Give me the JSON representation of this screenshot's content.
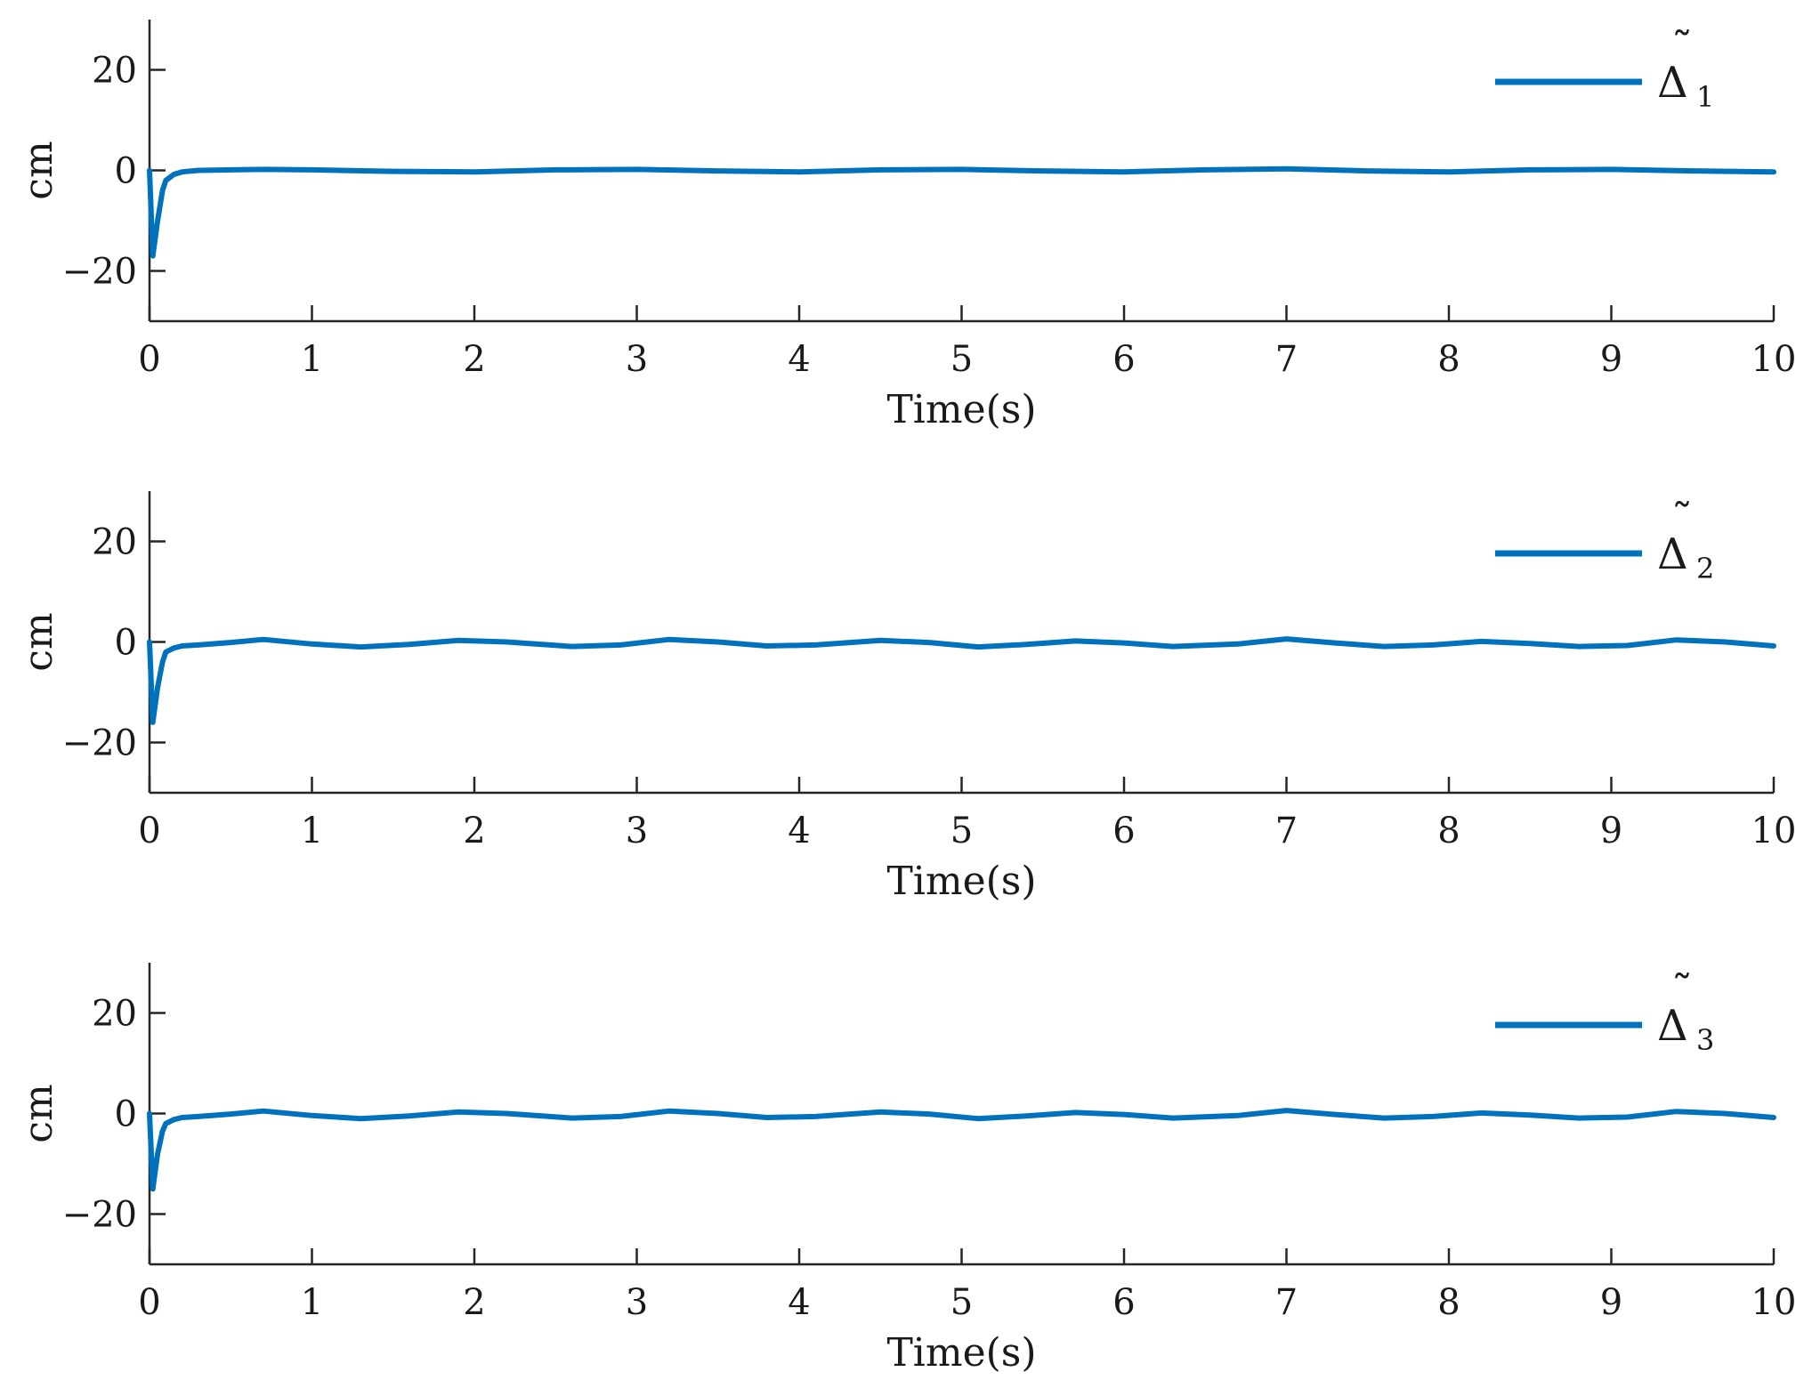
{
  "chart_data": [
    {
      "type": "line",
      "xlabel": "Time(s)",
      "ylabel": "cm",
      "xlim": [
        0,
        10
      ],
      "ylim": [
        -30,
        30
      ],
      "xticks": [
        0,
        1,
        2,
        3,
        4,
        5,
        6,
        7,
        8,
        9,
        10
      ],
      "yticks": [
        20,
        0,
        -20
      ],
      "xtick_labels": [
        "0",
        "1",
        "2",
        "3",
        "4",
        "5",
        "6",
        "7",
        "8",
        "9",
        "10"
      ],
      "ytick_labels": [
        "20",
        "0",
        "−20"
      ],
      "grid": false,
      "legend_position": "top-right",
      "series": [
        {
          "name": "Δ̃₁",
          "legend_symbol": "Δ",
          "legend_subscript": "1",
          "color": "#0072BD",
          "x": [
            0,
            0.02,
            0.05,
            0.08,
            0.1,
            0.15,
            0.2,
            0.3,
            0.5,
            0.7,
            1.0,
            1.5,
            2.0,
            2.5,
            3.0,
            3.5,
            4.0,
            4.5,
            5.0,
            5.5,
            6.0,
            6.5,
            7.0,
            7.5,
            8.0,
            8.5,
            9.0,
            9.5,
            10.0
          ],
          "y": [
            0,
            -17,
            -10,
            -4,
            -2,
            -0.8,
            -0.3,
            0,
            0.1,
            0.2,
            0.1,
            -0.2,
            -0.3,
            0.1,
            0.2,
            -0.1,
            -0.3,
            0.1,
            0.2,
            -0.1,
            -0.3,
            0.1,
            0.3,
            -0.1,
            -0.3,
            0.1,
            0.2,
            -0.1,
            -0.3
          ]
        }
      ]
    },
    {
      "type": "line",
      "xlabel": "Time(s)",
      "ylabel": "cm",
      "xlim": [
        0,
        10
      ],
      "ylim": [
        -30,
        30
      ],
      "xticks": [
        0,
        1,
        2,
        3,
        4,
        5,
        6,
        7,
        8,
        9,
        10
      ],
      "yticks": [
        20,
        0,
        -20
      ],
      "xtick_labels": [
        "0",
        "1",
        "2",
        "3",
        "4",
        "5",
        "6",
        "7",
        "8",
        "9",
        "10"
      ],
      "ytick_labels": [
        "20",
        "0",
        "−20"
      ],
      "grid": false,
      "legend_position": "top-right",
      "series": [
        {
          "name": "Δ̃₂",
          "legend_symbol": "Δ",
          "legend_subscript": "2",
          "color": "#0072BD",
          "x": [
            0,
            0.02,
            0.05,
            0.08,
            0.1,
            0.15,
            0.2,
            0.3,
            0.5,
            0.7,
            1.0,
            1.3,
            1.6,
            1.9,
            2.2,
            2.6,
            2.9,
            3.2,
            3.5,
            3.8,
            4.1,
            4.5,
            4.8,
            5.1,
            5.4,
            5.7,
            6.0,
            6.3,
            6.7,
            7.0,
            7.3,
            7.6,
            7.9,
            8.2,
            8.5,
            8.8,
            9.1,
            9.4,
            9.7,
            10.0
          ],
          "y": [
            0,
            -16,
            -9,
            -4,
            -2,
            -1.2,
            -0.8,
            -0.6,
            -0.1,
            0.5,
            -0.4,
            -1.0,
            -0.5,
            0.3,
            0.0,
            -0.9,
            -0.6,
            0.5,
            0.0,
            -0.8,
            -0.6,
            0.3,
            -0.1,
            -1.0,
            -0.5,
            0.2,
            -0.2,
            -0.9,
            -0.4,
            0.6,
            -0.2,
            -0.9,
            -0.6,
            0.1,
            -0.3,
            -0.9,
            -0.7,
            0.4,
            0.0,
            -0.8
          ]
        }
      ]
    },
    {
      "type": "line",
      "xlabel": "Time(s)",
      "ylabel": "cm",
      "xlim": [
        0,
        10
      ],
      "ylim": [
        -30,
        30
      ],
      "xticks": [
        0,
        1,
        2,
        3,
        4,
        5,
        6,
        7,
        8,
        9,
        10
      ],
      "yticks": [
        20,
        0,
        -20
      ],
      "xtick_labels": [
        "0",
        "1",
        "2",
        "3",
        "4",
        "5",
        "6",
        "7",
        "8",
        "9",
        "10"
      ],
      "ytick_labels": [
        "20",
        "0",
        "−20"
      ],
      "grid": false,
      "legend_position": "top-right",
      "series": [
        {
          "name": "Δ̃₃",
          "legend_symbol": "Δ",
          "legend_subscript": "3",
          "color": "#0072BD",
          "x": [
            0,
            0.02,
            0.05,
            0.08,
            0.1,
            0.15,
            0.2,
            0.3,
            0.5,
            0.7,
            1.0,
            1.3,
            1.6,
            1.9,
            2.2,
            2.6,
            2.9,
            3.2,
            3.5,
            3.8,
            4.1,
            4.5,
            4.8,
            5.1,
            5.4,
            5.7,
            6.0,
            6.3,
            6.7,
            7.0,
            7.3,
            7.6,
            7.9,
            8.2,
            8.5,
            8.8,
            9.1,
            9.4,
            9.7,
            10.0
          ],
          "y": [
            0,
            -15,
            -8,
            -3.5,
            -2,
            -1.2,
            -0.8,
            -0.6,
            -0.1,
            0.5,
            -0.4,
            -1.0,
            -0.5,
            0.3,
            0.0,
            -0.9,
            -0.6,
            0.5,
            0.0,
            -0.8,
            -0.6,
            0.3,
            -0.1,
            -1.0,
            -0.5,
            0.2,
            -0.2,
            -0.9,
            -0.4,
            0.6,
            -0.2,
            -0.9,
            -0.6,
            0.1,
            -0.3,
            -0.9,
            -0.7,
            0.4,
            0.0,
            -0.8
          ]
        }
      ]
    }
  ]
}
